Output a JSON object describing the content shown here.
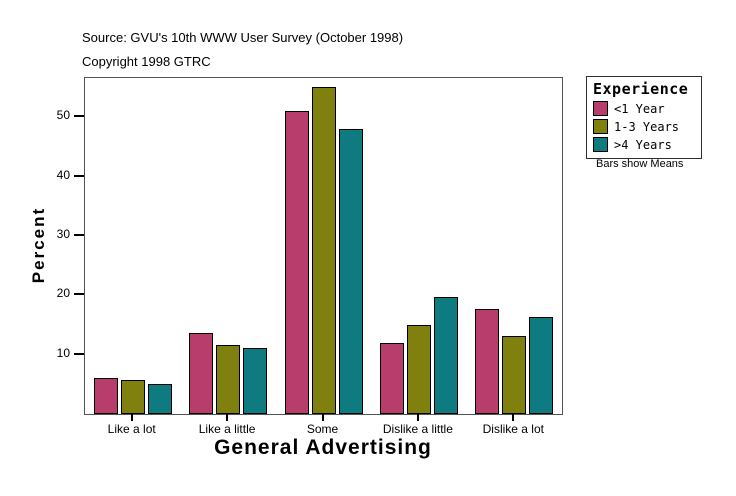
{
  "header": {
    "source": "Source: GVU's 10th WWW User Survey (October 1998)",
    "copyright": "Copyright 1998 GTRC"
  },
  "chart_data": {
    "type": "bar",
    "title": "",
    "xlabel": "General Advertising",
    "ylabel": "Percent",
    "categories": [
      "Like a lot",
      "Like a little",
      "Some",
      "Dislike a little",
      "Dislike a lot"
    ],
    "series": [
      {
        "name": "<1 Year",
        "color": "#B83C6C",
        "values": [
          6.0,
          13.7,
          51.0,
          12.0,
          17.7
        ]
      },
      {
        "name": "1-3 Years",
        "color": "#7F800D",
        "values": [
          5.7,
          11.6,
          55.0,
          15.0,
          13.2
        ]
      },
      {
        "name": ">4 Years",
        "color": "#0D7B80",
        "values": [
          5.0,
          11.1,
          48.0,
          19.7,
          16.3
        ]
      }
    ],
    "ylim": [
      0,
      56.6
    ],
    "yticks": [
      10,
      20,
      30,
      40,
      50
    ],
    "grid": false,
    "legend": {
      "title": "Experience",
      "position": "right"
    },
    "footnote": "Bars show Means",
    "bar_border_color": "#000000",
    "axis_color": "#545454"
  }
}
